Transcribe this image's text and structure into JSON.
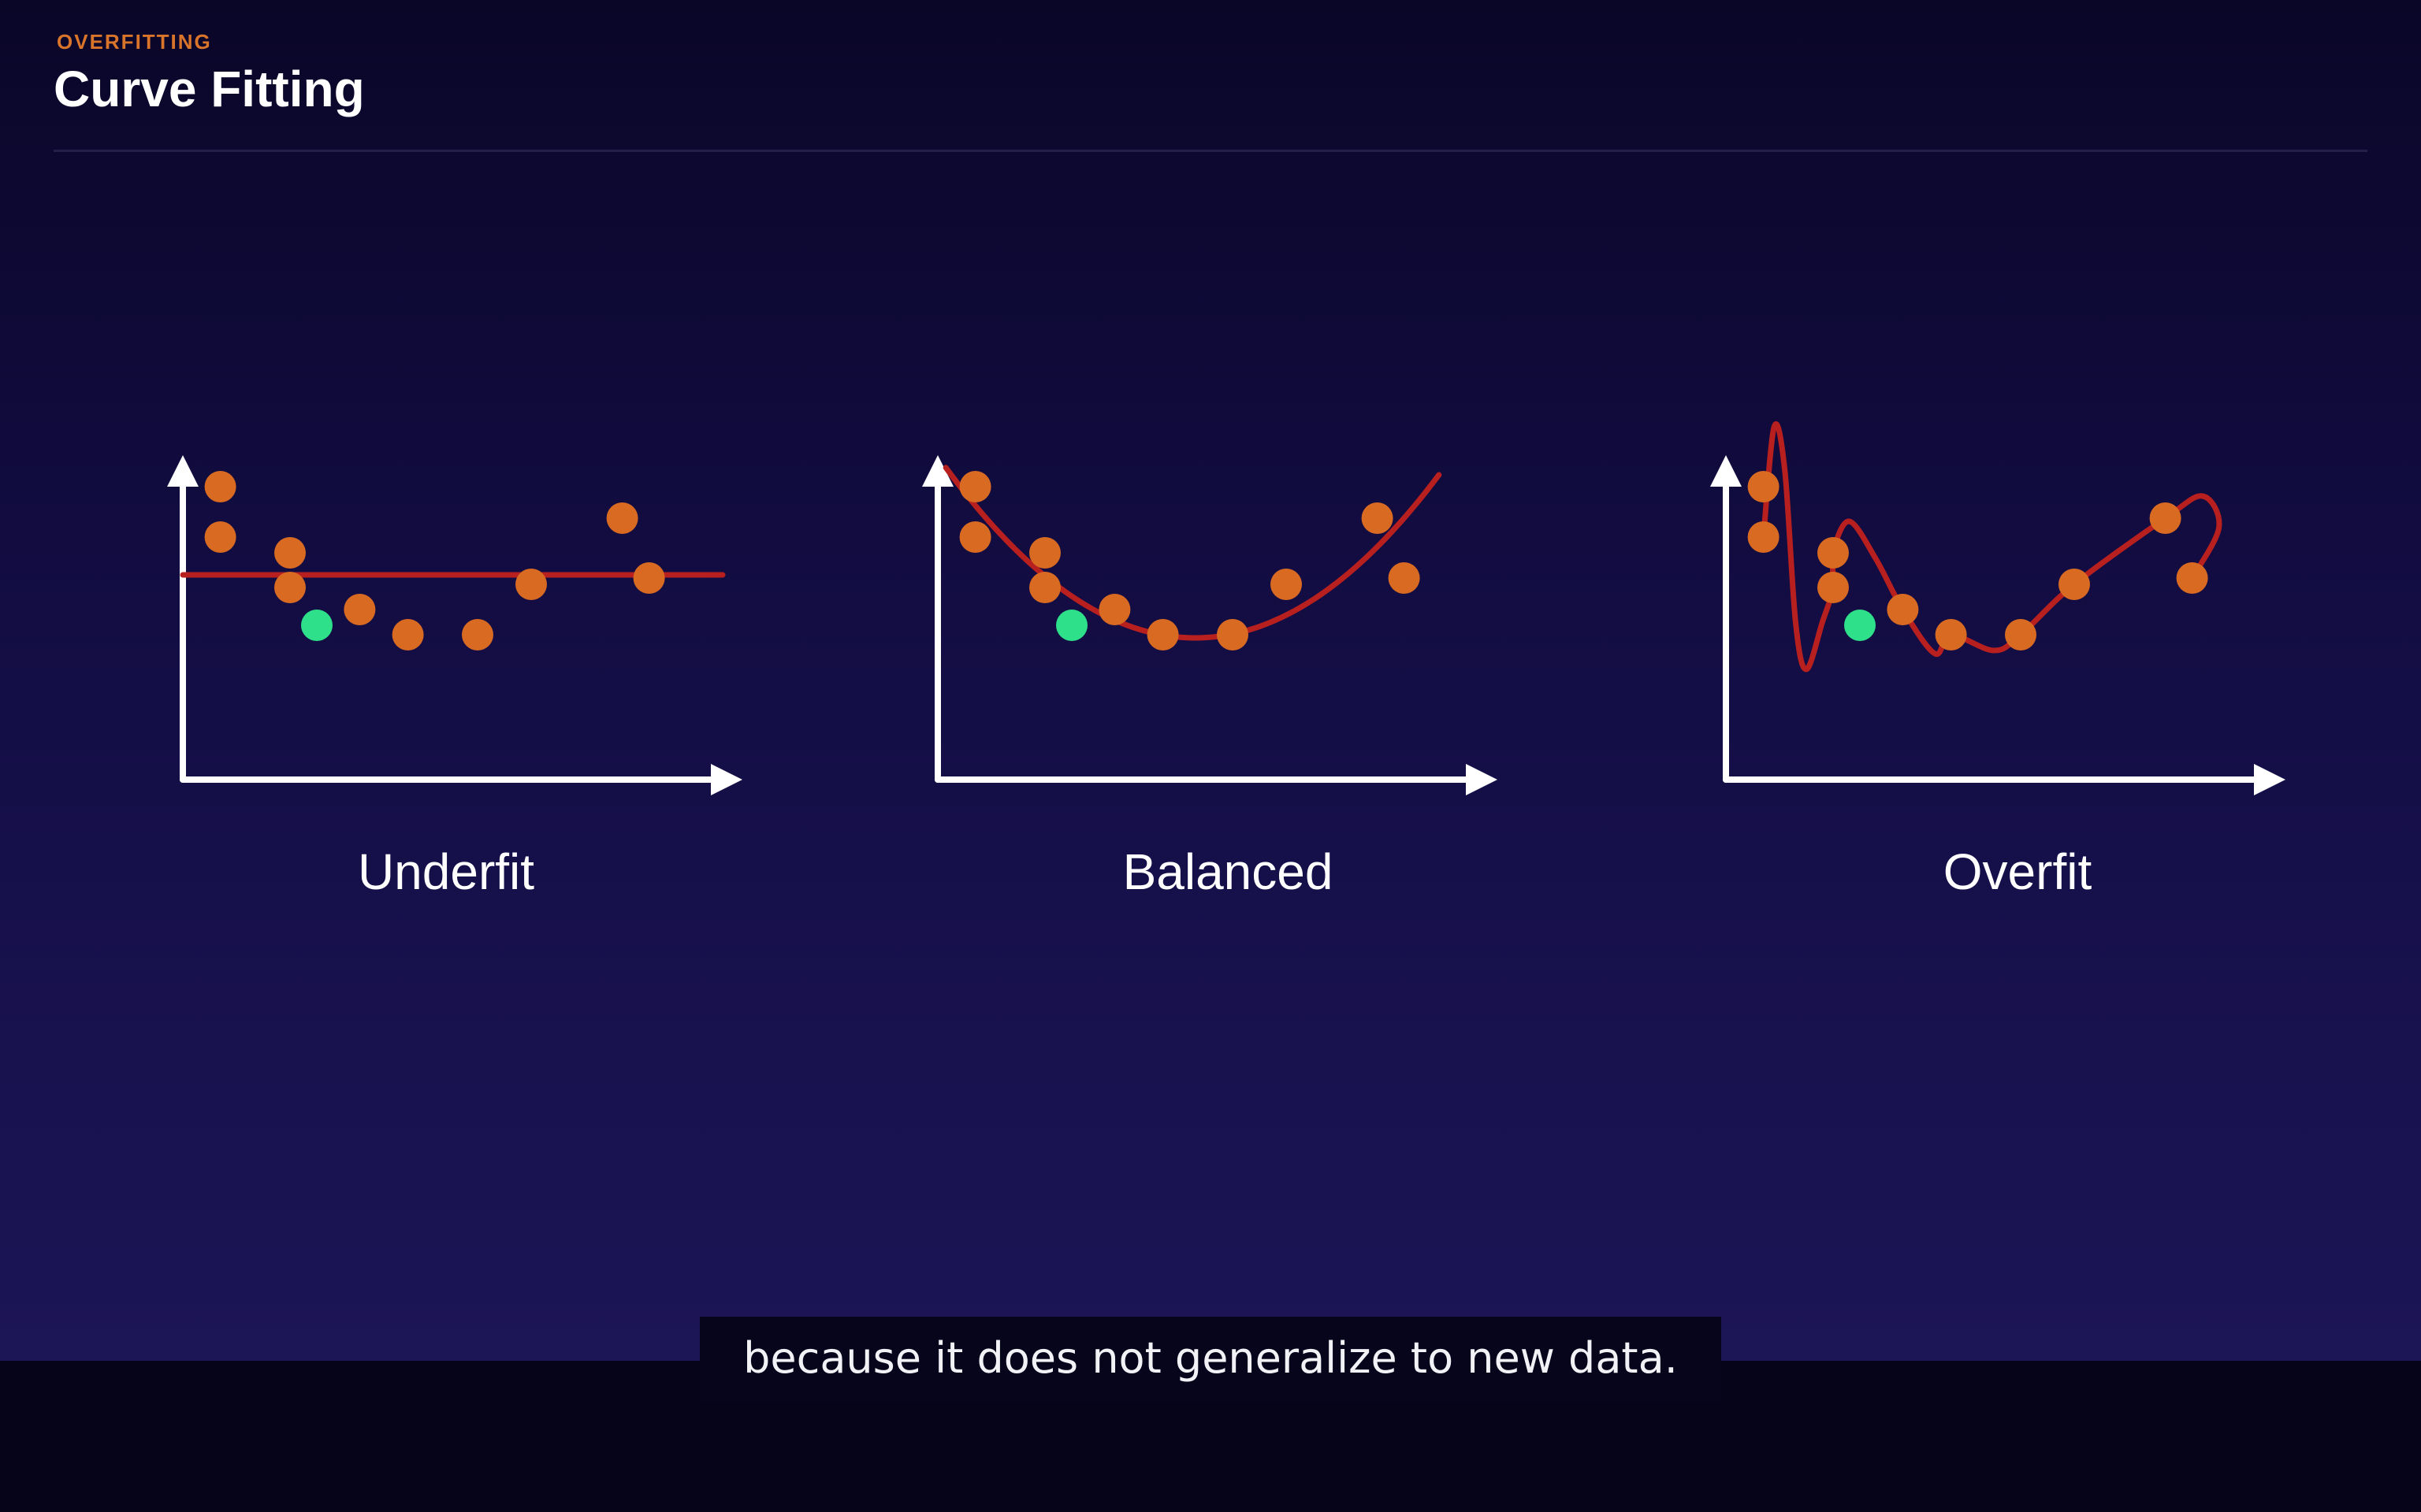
{
  "header": {
    "kicker": "OVERFITTING",
    "title": "Curve Fitting"
  },
  "subtitle": "because it does not generalize to new data.",
  "colors": {
    "data_point": "#d96a22",
    "new_point": "#2ee08a",
    "fit_curve": "#b8201f",
    "axes": "#ffffff"
  },
  "chart_data": [
    {
      "type": "scatter",
      "title": "Underfit",
      "fit": "constant",
      "points": [
        [
          0.7,
          9.3
        ],
        [
          0.7,
          7.7
        ],
        [
          2.0,
          7.2
        ],
        [
          2.0,
          6.1
        ],
        [
          3.3,
          5.4
        ],
        [
          4.2,
          4.6
        ],
        [
          5.5,
          4.6
        ],
        [
          6.5,
          6.2
        ],
        [
          8.2,
          8.3
        ],
        [
          8.7,
          6.4
        ]
      ],
      "new_point": [
        2.5,
        4.9
      ],
      "fit_line": 6.5,
      "xlim": [
        0,
        10
      ],
      "ylim": [
        0,
        10
      ]
    },
    {
      "type": "scatter",
      "title": "Balanced",
      "fit": "quadratic",
      "points": [
        [
          0.7,
          9.3
        ],
        [
          0.7,
          7.7
        ],
        [
          2.0,
          7.2
        ],
        [
          2.0,
          6.1
        ],
        [
          3.3,
          5.4
        ],
        [
          4.2,
          4.6
        ],
        [
          5.5,
          4.6
        ],
        [
          6.5,
          6.2
        ],
        [
          8.2,
          8.3
        ],
        [
          8.7,
          6.4
        ]
      ],
      "new_point": [
        2.5,
        4.9
      ],
      "xlim": [
        0,
        10
      ],
      "ylim": [
        0,
        10
      ]
    },
    {
      "type": "scatter",
      "title": "Overfit",
      "fit": "interpolating",
      "points": [
        [
          0.7,
          9.3
        ],
        [
          0.7,
          7.7
        ],
        [
          2.0,
          7.2
        ],
        [
          2.0,
          6.1
        ],
        [
          3.3,
          5.4
        ],
        [
          4.2,
          4.6
        ],
        [
          5.5,
          4.6
        ],
        [
          6.5,
          6.2
        ],
        [
          8.2,
          8.3
        ],
        [
          8.7,
          6.4
        ]
      ],
      "new_point": [
        2.5,
        4.9
      ],
      "xlim": [
        0,
        10
      ],
      "ylim": [
        0,
        10
      ]
    }
  ]
}
